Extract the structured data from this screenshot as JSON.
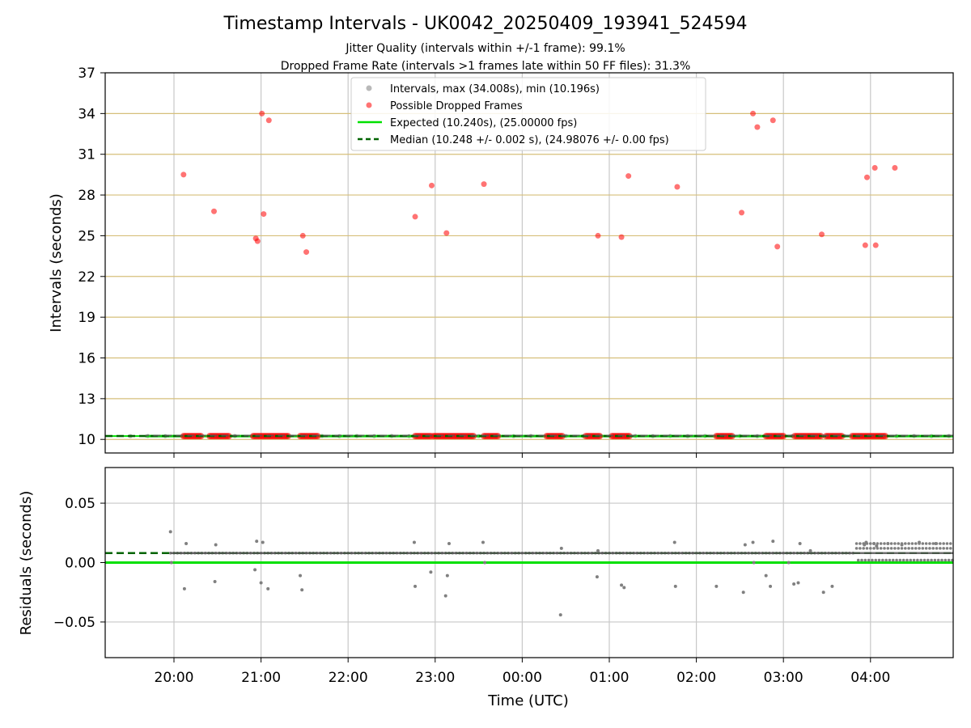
{
  "chart_data": {
    "type": "scatter",
    "title": "Timestamp Intervals - UK0042_20250409_193941_524594",
    "subtitles": [
      "Jitter Quality (intervals within +/-1 frame): 99.1%",
      "Dropped Frame Rate (intervals >1 frames late within 50 FF files): 31.3%"
    ],
    "xlabel": "Time (UTC)",
    "x_tick_labels": [
      "20:00",
      "21:00",
      "22:00",
      "23:00",
      "00:00",
      "01:00",
      "02:00",
      "03:00",
      "04:00"
    ],
    "x_ticks_hours": [
      0.5,
      1.5,
      2.5,
      3.5,
      4.5,
      5.5,
      6.5,
      7.5,
      8.5
    ],
    "x_range_hours": [
      -0.29,
      9.45
    ],
    "x_note": "x values are hours relative to 19:30 UTC",
    "top_panel": {
      "ylabel": "Intervals (seconds)",
      "ylim": [
        9.0,
        37.0
      ],
      "y_ticks": [
        10,
        13,
        16,
        19,
        22,
        25,
        28,
        31,
        34,
        37
      ],
      "grid": true,
      "legend_position": "top-center",
      "series": [
        {
          "name": "Intervals, max (34.008s), min (10.196s)",
          "type": "scatter",
          "color": "#808080",
          "note": "dense band of points near 10.24 s",
          "x": [
            0.0,
            0.2,
            0.4,
            0.6,
            0.8,
            1.0,
            1.2,
            1.4,
            1.6,
            1.8,
            2.0,
            2.2,
            2.4,
            2.6,
            2.8,
            3.0,
            3.2,
            3.4,
            3.6,
            3.8,
            4.0,
            4.2,
            4.4,
            4.6,
            4.8,
            5.0,
            5.2,
            5.4,
            5.6,
            5.8,
            6.0,
            6.2,
            6.4,
            6.6,
            6.8,
            7.0,
            7.2,
            7.4,
            7.6,
            7.8,
            8.0,
            8.2,
            8.4,
            8.6,
            8.8,
            9.0,
            9.2,
            9.4
          ],
          "y": [
            10.24,
            10.25,
            10.24,
            10.25,
            10.25,
            10.24,
            10.25,
            10.24,
            10.25,
            10.24,
            10.25,
            10.25,
            10.24,
            10.25,
            10.24,
            10.25,
            10.24,
            10.25,
            10.24,
            10.25,
            10.24,
            10.25,
            10.24,
            10.25,
            10.24,
            10.25,
            10.24,
            10.25,
            10.24,
            10.25,
            10.24,
            10.25,
            10.24,
            10.25,
            10.24,
            10.25,
            10.24,
            10.25,
            10.24,
            10.25,
            10.24,
            10.25,
            10.24,
            10.25,
            10.24,
            10.25,
            10.24,
            10.25
          ]
        },
        {
          "name": "Possible Dropped Frames",
          "type": "scatter",
          "color": "#ff0000",
          "x": [
            0.61,
            0.96,
            1.44,
            1.46,
            1.51,
            1.53,
            1.59,
            1.98,
            2.02,
            3.27,
            3.46,
            3.63,
            4.06,
            5.37,
            5.64,
            5.72,
            6.28,
            7.02,
            7.15,
            7.2,
            7.38,
            7.43,
            7.94,
            8.44,
            8.46,
            8.55,
            8.56,
            8.78
          ],
          "y": [
            29.5,
            26.8,
            24.8,
            24.6,
            34.0,
            26.6,
            33.5,
            25.0,
            23.8,
            26.4,
            28.7,
            25.2,
            28.8,
            25.0,
            24.9,
            29.4,
            28.6,
            26.7,
            34.0,
            33.0,
            33.5,
            24.2,
            25.1,
            24.3,
            29.3,
            30.0,
            24.3,
            30.0
          ],
          "band_segments_hours": [
            [
              0.61,
              0.81
            ],
            [
              0.91,
              1.13
            ],
            [
              1.41,
              1.82
            ],
            [
              1.95,
              2.16
            ],
            [
              3.27,
              3.46
            ],
            [
              3.48,
              3.95
            ],
            [
              4.06,
              4.23
            ],
            [
              4.78,
              4.97
            ],
            [
              5.23,
              5.39
            ],
            [
              5.53,
              5.73
            ],
            [
              6.73,
              6.91
            ],
            [
              7.3,
              7.51
            ],
            [
              7.63,
              7.93
            ],
            [
              7.99,
              8.18
            ],
            [
              8.29,
              8.67
            ]
          ],
          "band_y": 10.24
        },
        {
          "name": "Expected (10.240s), (25.00000 fps)",
          "type": "hline",
          "color": "#00e000",
          "y": 10.24
        },
        {
          "name": "Median (10.248 +/- 0.002 s), (24.98076 +/- 0.00 fps)",
          "type": "hline",
          "style": "dashed",
          "color": "#006400",
          "y": 10.248
        }
      ]
    },
    "bottom_panel": {
      "ylabel": "Residuals (seconds)",
      "ylim": [
        -0.08,
        0.08
      ],
      "y_ticks": [
        0.05,
        0.0,
        -0.05
      ],
      "y_tick_labels": [
        "0.05",
        "0.00",
        "−0.05"
      ],
      "grid": true,
      "expected_line": 0.0,
      "median_line": 0.008,
      "residual_points": {
        "color": "#808080",
        "x": [
          0.46,
          0.47,
          0.62,
          0.64,
          0.98,
          0.97,
          1.43,
          1.45,
          1.5,
          1.52,
          1.58,
          1.95,
          1.97,
          3.26,
          3.27,
          3.45,
          3.62,
          3.64,
          3.66,
          4.05,
          4.07,
          4.94,
          4.95,
          5.36,
          5.37,
          5.64,
          5.67,
          6.25,
          6.26,
          6.73,
          7.04,
          7.06,
          7.15,
          7.16,
          7.3,
          7.35,
          7.38,
          7.56,
          7.62,
          7.67,
          7.69,
          7.81,
          7.96,
          8.06,
          8.43,
          8.45,
          8.54,
          8.57,
          8.7,
          8.86,
          9.06,
          9.25
        ],
        "y": [
          0.026,
          0.0,
          -0.022,
          0.016,
          0.015,
          -0.016,
          -0.006,
          0.018,
          -0.017,
          0.017,
          -0.022,
          -0.011,
          -0.023,
          0.017,
          -0.02,
          -0.008,
          -0.028,
          -0.011,
          0.016,
          0.017,
          0.0,
          -0.044,
          0.012,
          -0.012,
          0.01,
          -0.019,
          -0.021,
          0.017,
          -0.02,
          -0.02,
          -0.025,
          0.015,
          0.017,
          0.0,
          -0.011,
          -0.02,
          0.018,
          0.0,
          -0.018,
          -0.017,
          0.016,
          0.01,
          -0.025,
          -0.02,
          0.015,
          0.017,
          0.016,
          0.014,
          0.016,
          0.015,
          0.017,
          0.016
        ]
      }
    }
  }
}
